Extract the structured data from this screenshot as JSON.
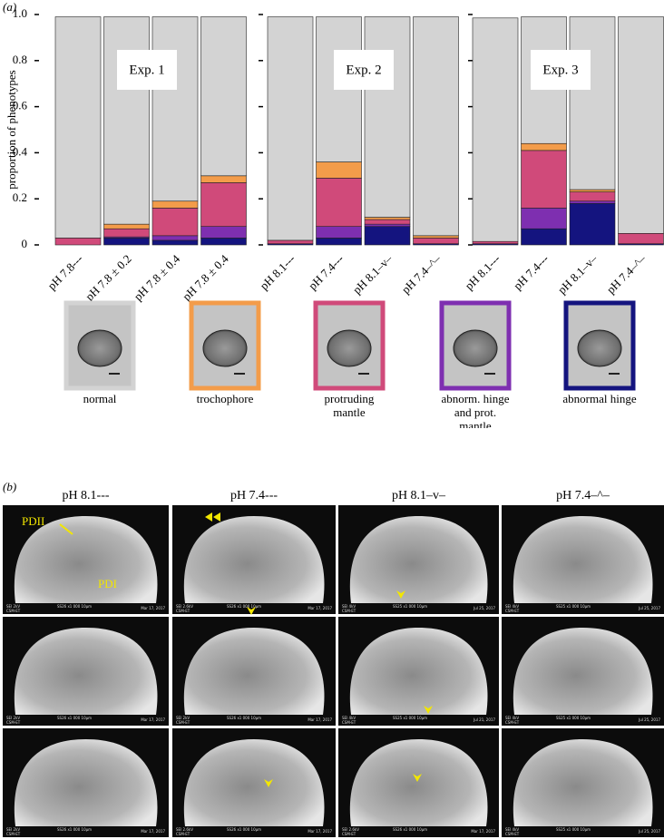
{
  "panel_a": "(a)",
  "panel_b": "(b)",
  "chart_data": {
    "type": "bar",
    "stacked": true,
    "ylabel": "proportion of phenotypes",
    "annotations": [
      "Exp. 1",
      "Exp. 2",
      "Exp. 3"
    ],
    "categories": [
      "pH 7.8---",
      "pH 7.8 ± 0.2",
      "pH 7.8 ± 0.4",
      "pH 7.8 ± 0.4",
      "pH 8.1---",
      "pH 7.4---",
      "pH 8.1–v–",
      "pH 7.4–^–",
      "pH 8.1---",
      "pH 7.4---",
      "pH 8.1–v–",
      "pH 7.4–^–"
    ],
    "series": [
      {
        "name": "normal",
        "color": "#d3d3d3",
        "values": [
          0.96,
          0.9,
          0.8,
          0.69,
          0.97,
          0.63,
          0.87,
          0.95,
          0.97,
          0.55,
          0.75,
          0.94
        ]
      },
      {
        "name": "trochophore",
        "color": "#f39c4a",
        "values": [
          0,
          0.02,
          0.03,
          0.03,
          0,
          0.07,
          0.01,
          0.01,
          0,
          0.03,
          0.01,
          0
        ]
      },
      {
        "name": "protruding mantle",
        "color": "#d04a7a",
        "values": [
          0.03,
          0.035,
          0.12,
          0.19,
          0.015,
          0.21,
          0.02,
          0.025,
          0.01,
          0.25,
          0.04,
          0.045
        ]
      },
      {
        "name": "abnorm. hinge and prot. mantle",
        "color": "#7e2fb0",
        "values": [
          0,
          0.005,
          0.02,
          0.05,
          0,
          0.05,
          0.01,
          0,
          0,
          0.09,
          0.01,
          0
        ]
      },
      {
        "name": "abnormal hinge",
        "color": "#14147f",
        "values": [
          0,
          0.03,
          0.02,
          0.03,
          0.005,
          0.03,
          0.08,
          0.005,
          0.005,
          0.07,
          0.18,
          0.005
        ]
      }
    ],
    "ylim": [
      0,
      1
    ],
    "yticks": [
      0,
      0.2,
      0.4,
      0.6,
      0.8,
      {
        "value": 1,
        "label": "1.0"
      }
    ]
  },
  "sem": {
    "annotations": [
      "PDII",
      "PDI"
    ],
    "columns": [
      {
        "title": "pH 8.1---",
        "images": [
          {
            "kv": "SEI  2kV",
            "lab": "CSM-ET",
            "scale": "SS26    x1 000   10µm",
            "date": "Mar 17, 2017"
          },
          {
            "kv": "SEI  2kV",
            "lab": "CSM-ET",
            "scale": "SS26    x1 000   10µm",
            "date": "Mar 17, 2017"
          },
          {
            "kv": "SEI  2kV",
            "lab": "CSM-ET",
            "scale": "SS26    x1 000   10µm",
            "date": "Mar 17, 2017"
          }
        ]
      },
      {
        "title": "pH 7.4---",
        "images": [
          {
            "kv": "SEI  2.6kV",
            "lab": "CSM-ET",
            "scale": "SS26    x1 000   10µm",
            "date": "Mar 17, 2017"
          },
          {
            "kv": "SEI  2kV",
            "lab": "CSM-ET",
            "scale": "SS26    x1 000   10µm",
            "date": "Mar 17, 2017"
          },
          {
            "kv": "SEI  2.6kV",
            "lab": "CSM-ET",
            "scale": "SS26    x1 000   10µm",
            "date": "Mar 17, 2017"
          }
        ]
      },
      {
        "title": "pH 8.1–v–",
        "images": [
          {
            "kv": "SEI  4kV",
            "lab": "CSM-ET",
            "scale": "SS25    x1 000   10µm",
            "date": "Jul 25, 2017"
          },
          {
            "kv": "SEI  4kV",
            "lab": "CSM-ET",
            "scale": "SS25    x1 000   10µm",
            "date": "Jul 21, 2017"
          },
          {
            "kv": "SEI  2.6kV",
            "lab": "CSM-ET",
            "scale": "SS26    x1 000   10µm",
            "date": "Mar 17, 2017"
          }
        ]
      },
      {
        "title": "pH 7.4–^–",
        "images": [
          {
            "kv": "SEI  4kV",
            "lab": "CSM-ET",
            "scale": "SS25    x1 000   10µm",
            "date": "Jul 25, 2017"
          },
          {
            "kv": "SEI  4kV",
            "lab": "CSM-ET",
            "scale": "SS25    x1 000   10µm",
            "date": "Jul 25, 2017"
          },
          {
            "kv": "SEI  4kV",
            "lab": "CSM-ET",
            "scale": "SS25    x1 000   10µm",
            "date": "Jul 25, 2017"
          }
        ]
      }
    ]
  }
}
